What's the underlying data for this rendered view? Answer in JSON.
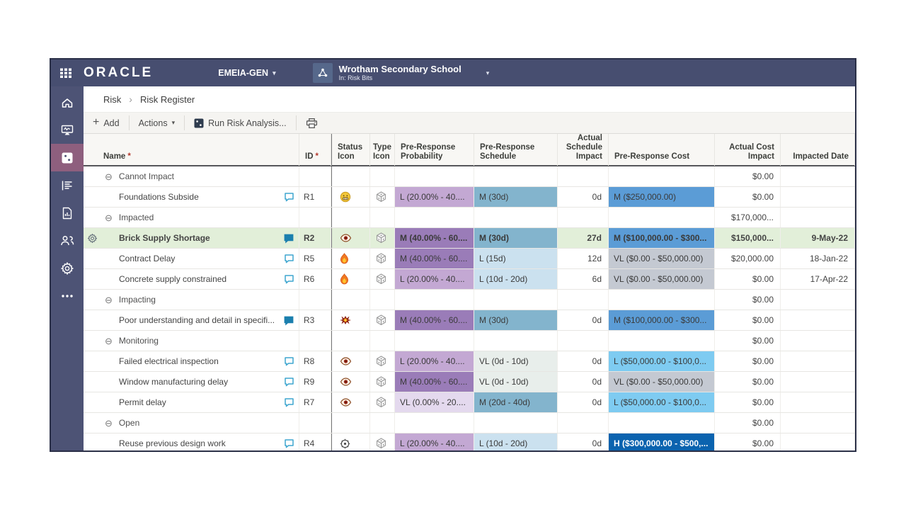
{
  "topbar": {
    "brand": "ORACLE",
    "workspace": "EMEIA-GEN",
    "project_name": "Wrotham Secondary School",
    "project_context": "In: Risk Bits"
  },
  "sidebar": {
    "items": [
      {
        "id": "home",
        "icon": "home-icon",
        "active": false
      },
      {
        "id": "dashboards",
        "icon": "dashboard-icon",
        "active": false
      },
      {
        "id": "risks",
        "icon": "dice-nav-icon",
        "active": true
      },
      {
        "id": "register",
        "icon": "register-icon",
        "active": false
      },
      {
        "id": "reports",
        "icon": "report-icon",
        "active": false
      },
      {
        "id": "team",
        "icon": "team-icon",
        "active": false
      },
      {
        "id": "settings",
        "icon": "gear-white-icon",
        "active": false
      },
      {
        "id": "more",
        "icon": "more-icon",
        "active": false
      }
    ]
  },
  "breadcrumb": {
    "section": "Risk",
    "separator": "›",
    "page": "Risk Register"
  },
  "toolbar": {
    "add": "Add",
    "actions": "Actions",
    "run_risk_analysis": "Run Risk Analysis...",
    "caret": "▾"
  },
  "table": {
    "columns": [
      {
        "key": "name",
        "label": "Name",
        "required": true,
        "align": "left"
      },
      {
        "key": "id",
        "label": "ID",
        "required": true,
        "align": "left"
      },
      {
        "key": "status",
        "label": "Status Icon",
        "align": "left"
      },
      {
        "key": "type",
        "label": "Type Icon",
        "align": "left"
      },
      {
        "key": "probability",
        "label": "Pre-Response Probability",
        "align": "left"
      },
      {
        "key": "schedule",
        "label": "Pre-Response Schedule",
        "align": "left"
      },
      {
        "key": "schedule_impact",
        "label": "Actual Schedule Impact",
        "align": "right"
      },
      {
        "key": "cost",
        "label": "Pre-Response Cost",
        "align": "left"
      },
      {
        "key": "cost_impact",
        "label": "Actual Cost Impact",
        "align": "right"
      },
      {
        "key": "impacted_date",
        "label": "Impacted Date",
        "align": "right"
      }
    ],
    "rows": [
      {
        "type": "group",
        "label": "Cannot Impact",
        "cost_impact": "$0.00"
      },
      {
        "type": "risk",
        "name": "Foundations Subside",
        "comment_icon": "comment-outline-icon",
        "id": "R1",
        "status_icon": "face-grimace-icon",
        "type_icon": "dice-icon",
        "probability": {
          "text": "L (20.00% - 40....",
          "level": "L"
        },
        "schedule": {
          "text": "M (30d)",
          "level": "M"
        },
        "schedule_impact": "0d",
        "cost": {
          "text": "M ($250,000.00)",
          "level": "M"
        },
        "cost_impact": "$0.00",
        "impacted_date": ""
      },
      {
        "type": "group",
        "label": "Impacted",
        "cost_impact": "$170,000..."
      },
      {
        "type": "risk",
        "selected": true,
        "name": "Brick Supply Shortage",
        "comment_icon": "comment-filled-icon",
        "id": "R2",
        "status_icon": "eye-icon",
        "type_icon": "dice-icon",
        "probability": {
          "text": "M (40.00% - 60....",
          "level": "M"
        },
        "schedule": {
          "text": "M (30d)",
          "level": "M"
        },
        "schedule_impact": "27d",
        "cost": {
          "text": "M ($100,000.00 - $300...",
          "level": "M"
        },
        "cost_impact": "$150,000...",
        "impacted_date": "9-May-22"
      },
      {
        "type": "risk",
        "name": "Contract Delay",
        "comment_icon": "comment-outline-icon",
        "id": "R5",
        "status_icon": "flame-icon",
        "type_icon": "dice-icon",
        "probability": {
          "text": "M (40.00% - 60....",
          "level": "M"
        },
        "schedule": {
          "text": "L (15d)",
          "level": "L"
        },
        "schedule_impact": "12d",
        "cost": {
          "text": "VL ($0.00 - $50,000.00)",
          "level": "VL"
        },
        "cost_impact": "$20,000.00",
        "impacted_date": "18-Jan-22"
      },
      {
        "type": "risk",
        "name": "Concrete supply constrained",
        "comment_icon": "comment-outline-icon",
        "id": "R6",
        "status_icon": "flame-icon",
        "type_icon": "dice-icon",
        "probability": {
          "text": "L (20.00% - 40....",
          "level": "L"
        },
        "schedule": {
          "text": "L (10d - 20d)",
          "level": "L"
        },
        "schedule_impact": "6d",
        "cost": {
          "text": "VL ($0.00 - $50,000.00)",
          "level": "VL"
        },
        "cost_impact": "$0.00",
        "impacted_date": "17-Apr-22"
      },
      {
        "type": "group",
        "label": "Impacting",
        "cost_impact": "$0.00"
      },
      {
        "type": "risk",
        "name": "Poor understanding and detail in specifi...",
        "comment_icon": "comment-filled-icon",
        "id": "R3",
        "status_icon": "impact-icon",
        "type_icon": "dice-icon",
        "probability": {
          "text": "M (40.00% - 60....",
          "level": "M"
        },
        "schedule": {
          "text": "M (30d)",
          "level": "M"
        },
        "schedule_impact": "0d",
        "cost": {
          "text": "M ($100,000.00 - $300...",
          "level": "M"
        },
        "cost_impact": "$0.00",
        "impacted_date": ""
      },
      {
        "type": "group",
        "label": "Monitoring",
        "cost_impact": "$0.00"
      },
      {
        "type": "risk",
        "name": "Failed electrical inspection",
        "comment_icon": "comment-outline-icon",
        "id": "R8",
        "status_icon": "eye-icon",
        "type_icon": "dice-icon",
        "probability": {
          "text": "L (20.00% - 40....",
          "level": "L"
        },
        "schedule": {
          "text": "VL (0d - 10d)",
          "level": "VL"
        },
        "schedule_impact": "0d",
        "cost": {
          "text": "L ($50,000.00 - $100,0...",
          "level": "L"
        },
        "cost_impact": "$0.00",
        "impacted_date": ""
      },
      {
        "type": "risk",
        "name": "Window manufacturing delay",
        "comment_icon": "comment-outline-icon",
        "id": "R9",
        "status_icon": "eye-icon",
        "type_icon": "dice-icon",
        "probability": {
          "text": "M (40.00% - 60....",
          "level": "M"
        },
        "schedule": {
          "text": "VL (0d - 10d)",
          "level": "VL"
        },
        "schedule_impact": "0d",
        "cost": {
          "text": "VL ($0.00 - $50,000.00)",
          "level": "VL"
        },
        "cost_impact": "$0.00",
        "impacted_date": ""
      },
      {
        "type": "risk",
        "name": "Permit delay",
        "comment_icon": "comment-outline-icon",
        "id": "R7",
        "status_icon": "eye-icon",
        "type_icon": "dice-icon",
        "probability": {
          "text": "VL (0.00% - 20....",
          "level": "VL"
        },
        "schedule": {
          "text": "M (20d - 40d)",
          "level": "M"
        },
        "schedule_impact": "0d",
        "cost": {
          "text": "L ($50,000.00 - $100,0...",
          "level": "L"
        },
        "cost_impact": "$0.00",
        "impacted_date": ""
      },
      {
        "type": "group",
        "label": "Open",
        "cost_impact": "$0.00"
      },
      {
        "type": "risk",
        "name": "Reuse previous design work",
        "comment_icon": "comment-outline-icon",
        "id": "R4",
        "status_icon": "target-icon",
        "type_icon": "dice-icon",
        "probability": {
          "text": "L (20.00% - 40....",
          "level": "L"
        },
        "schedule": {
          "text": "L (10d - 20d)",
          "level": "L"
        },
        "schedule_impact": "0d",
        "cost": {
          "text": "H ($300,000.00 - $500,...",
          "level": "H"
        },
        "cost_impact": "$0.00",
        "impacted_date": ""
      }
    ]
  },
  "colors": {
    "topbar": "#474e70",
    "sidebar": "#4d5375",
    "sidebar_active": "#8e5f7e",
    "selected_row": "#e2efd9",
    "prob_M": "#9a7cb8",
    "prob_L": "#c3a8d3",
    "prob_VL": "#e4d9ee",
    "sched_M": "#83b4cd",
    "sched_L": "#cbe1ef",
    "sched_VL": "#e8eeeb",
    "cost_M": "#5b9cd6",
    "cost_L": "#7ecbf1",
    "cost_VL": "#c4c9d2",
    "cost_H": "#0b63af"
  }
}
